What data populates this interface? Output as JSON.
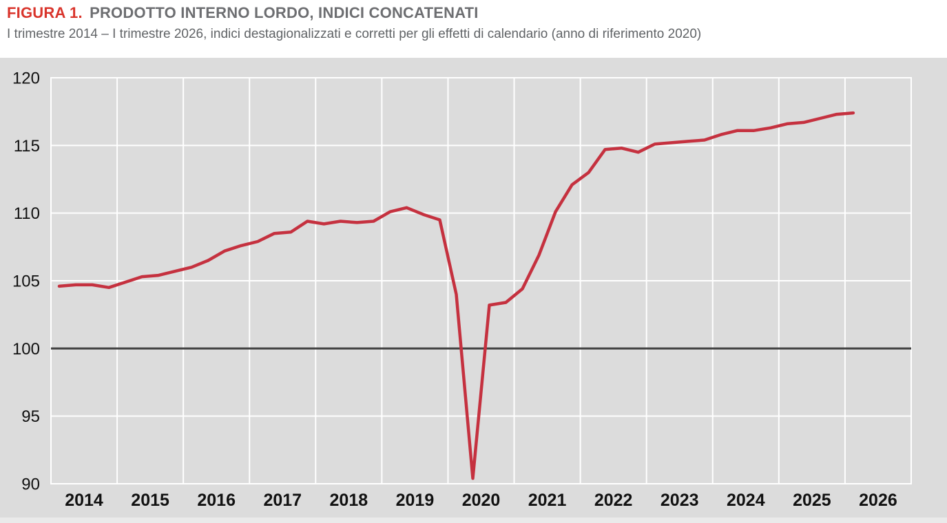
{
  "figure": {
    "label": "FIGURA 1.",
    "title": "PRODOTTO INTERNO LORDO, INDICI CONCATENATI",
    "subtitle": "I trimestre 2014 – I trimestre 2026, indici destagionalizzati e corretti per gli effetti di calendario (anno di riferimento 2020)"
  },
  "colors": {
    "figure_label_red": "#d9342b",
    "title_gray": "#6d6e71",
    "subtitle_gray": "#606366",
    "panel_background": "#dcdcdc",
    "gridline_white": "#ffffff",
    "reference_line_dark": "#414141",
    "series_red": "#c5313f",
    "tick_label_black": "#111111"
  },
  "chart_data": {
    "type": "line",
    "title": "PRODOTTO INTERNO LORDO, INDICI CONCATENATI",
    "subtitle": "I trimestre 2014 – I trimestre 2026, indici destagionalizzati e corretti per gli effetti di calendario (anno di riferimento 2020)",
    "xlabel": "",
    "ylabel": "",
    "ylim": [
      90,
      120
    ],
    "yticks": [
      90,
      95,
      100,
      105,
      110,
      115,
      120
    ],
    "x_year_labels": [
      "2014",
      "2015",
      "2016",
      "2017",
      "2018",
      "2019",
      "2020",
      "2021",
      "2022",
      "2023",
      "2024",
      "2025",
      "2026"
    ],
    "grid": true,
    "legend_position": "none",
    "reference_value": 100,
    "x": [
      "2014-T1",
      "2014-T2",
      "2014-T3",
      "2014-T4",
      "2015-T1",
      "2015-T2",
      "2015-T3",
      "2015-T4",
      "2016-T1",
      "2016-T2",
      "2016-T3",
      "2016-T4",
      "2017-T1",
      "2017-T2",
      "2017-T3",
      "2017-T4",
      "2018-T1",
      "2018-T2",
      "2018-T3",
      "2018-T4",
      "2019-T1",
      "2019-T2",
      "2019-T3",
      "2019-T4",
      "2020-T1",
      "2020-T2",
      "2020-T3",
      "2020-T4",
      "2021-T1",
      "2021-T2",
      "2021-T3",
      "2021-T4",
      "2022-T1",
      "2022-T2",
      "2022-T3",
      "2022-T4",
      "2023-T1",
      "2023-T2",
      "2023-T3",
      "2023-T4",
      "2024-T1",
      "2024-T2",
      "2024-T3",
      "2024-T4",
      "2025-T1",
      "2025-T2",
      "2025-T3",
      "2025-T4",
      "2026-T1"
    ],
    "series": [
      {
        "name": "Prodotto interno lordo, indice concatenato (anno di riferimento 2020)",
        "values": [
          104.6,
          104.7,
          104.7,
          104.5,
          104.9,
          105.3,
          105.4,
          105.7,
          106.0,
          106.5,
          107.2,
          107.6,
          107.9,
          108.5,
          108.6,
          109.4,
          109.2,
          109.4,
          109.3,
          109.4,
          110.1,
          110.4,
          109.9,
          109.5,
          104.0,
          90.4,
          103.2,
          103.4,
          104.4,
          106.9,
          110.1,
          112.1,
          113.0,
          114.7,
          114.8,
          114.5,
          115.1,
          115.2,
          115.3,
          115.4,
          115.8,
          116.1,
          116.1,
          116.3,
          116.6,
          116.7,
          117.0,
          117.3,
          117.4
        ]
      }
    ]
  }
}
